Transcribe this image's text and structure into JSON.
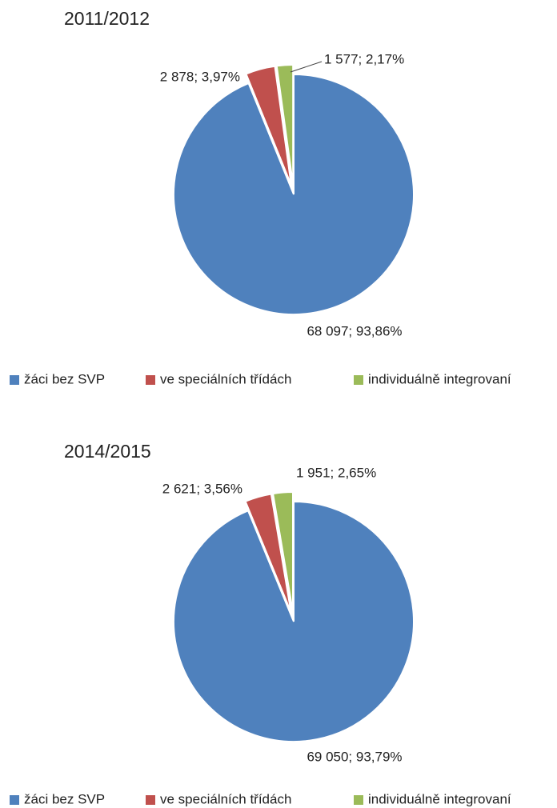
{
  "chart_data": [
    {
      "type": "pie",
      "title": "2011/2012",
      "categories": [
        "žáci bez SVP",
        "ve speciálních třídách",
        "individuálně integrovaní"
      ],
      "values": [
        68097,
        2878,
        1577
      ],
      "value_labels": [
        "68 097; 93,86%",
        "2 878; 3,97%",
        "1 577; 2,17%"
      ],
      "colors": [
        "#4f81bd",
        "#c0504d",
        "#9bbb59"
      ],
      "legend": "bottom"
    },
    {
      "type": "pie",
      "title": "2014/2015",
      "categories": [
        "žáci bez SVP",
        "ve speciálních třídách",
        "individuálně integrovaní"
      ],
      "values": [
        69050,
        2621,
        1951
      ],
      "value_labels": [
        "69 050; 93,79%",
        "2 621; 3,56%",
        "1 951; 2,65%"
      ],
      "colors": [
        "#4f81bd",
        "#c0504d",
        "#9bbb59"
      ],
      "legend": "bottom"
    }
  ]
}
